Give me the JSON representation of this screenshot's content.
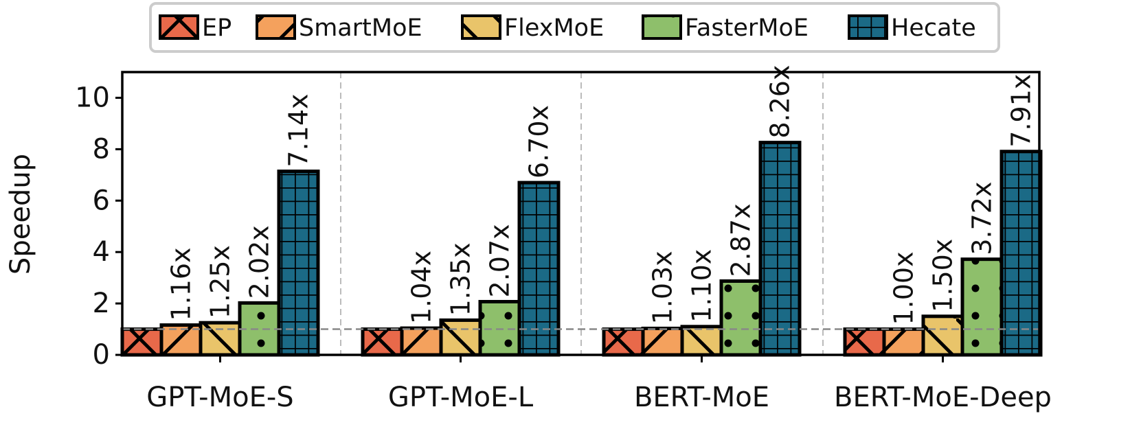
{
  "chart_data": {
    "type": "bar",
    "ylabel": "Speedup",
    "xlabel": "",
    "ylim": [
      0,
      11
    ],
    "yticks": [
      "0",
      "2",
      "4",
      "6",
      "8",
      "10"
    ],
    "categories": [
      "GPT-MoE-S",
      "GPT-MoE-L",
      "BERT-MoE",
      "BERT-MoE-Deep"
    ],
    "reference_line": 1.0,
    "legend_position": "top-center",
    "series": [
      {
        "name": "EP",
        "color": "#e8694a",
        "pattern": "x",
        "values": [
          1.0,
          1.0,
          1.0,
          1.0
        ],
        "labels": [
          "",
          "",
          "",
          ""
        ]
      },
      {
        "name": "SmartMoE",
        "color": "#f4a15d",
        "pattern": "slash",
        "values": [
          1.16,
          1.04,
          1.03,
          1.0
        ],
        "labels": [
          "1.16x",
          "1.04x",
          "1.03x",
          "1.00x"
        ]
      },
      {
        "name": "FlexMoE",
        "color": "#e9c46a",
        "pattern": "bslash",
        "values": [
          1.25,
          1.35,
          1.1,
          1.5
        ],
        "labels": [
          "1.25x",
          "1.35x",
          "1.10x",
          "1.50x"
        ]
      },
      {
        "name": "FasterMoE",
        "color": "#8ebf6b",
        "pattern": "dots",
        "values": [
          2.02,
          2.07,
          2.87,
          3.72
        ],
        "labels": [
          "2.02x",
          "2.07x",
          "2.87x",
          "3.72x"
        ]
      },
      {
        "name": "Hecate",
        "color": "#1b6a86",
        "pattern": "grid",
        "values": [
          7.14,
          6.7,
          8.26,
          7.91
        ],
        "labels": [
          "7.14x",
          "6.70x",
          "8.26x",
          "7.91x"
        ]
      }
    ]
  }
}
